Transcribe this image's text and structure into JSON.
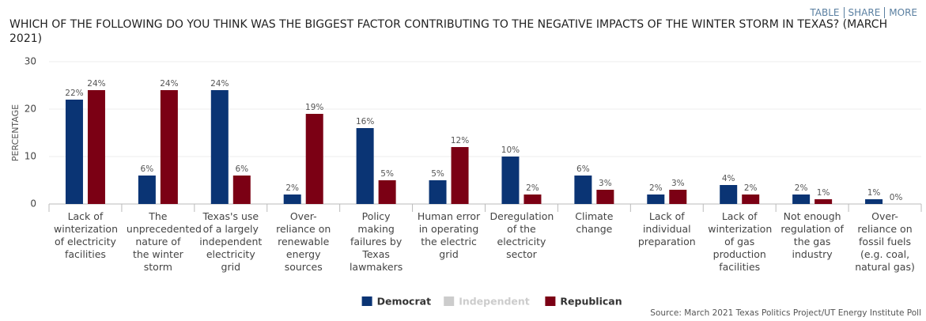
{
  "header": {
    "links": [
      "TABLE",
      "SHARE",
      "MORE"
    ]
  },
  "chart_data": {
    "type": "bar",
    "title": "WHICH OF THE FOLLOWING DO YOU THINK WAS THE BIGGEST FACTOR CONTRIBUTING TO THE NEGATIVE IMPACTS OF THE WINTER STORM IN TEXAS? (MARCH 2021)",
    "y_label": "PERCENTAGE",
    "categories": [
      "Lack of winterization of electricity facilities",
      "The unprecedented nature of the winter storm",
      "Texas's use of a largely independent electricity grid",
      "Over-reliance on renewable energy sources",
      "Policy making failures by Texas lawmakers",
      "Human error in operating the electric grid",
      "Deregulation of the electricity sector",
      "Climate change",
      "Lack of individual preparation",
      "Lack of winterization of gas production facilities",
      "Not enough regulation of the gas industry",
      "Over-reliance on fossil fuels (e.g. coal, natural gas)"
    ],
    "series": [
      {
        "name": "Democrat",
        "color": "#0a3474",
        "visible": true,
        "values": [
          22,
          6,
          24,
          2,
          16,
          5,
          10,
          6,
          2,
          4,
          2,
          1
        ],
        "value_labels": [
          "22%",
          "6%",
          "24%",
          "2%",
          "16%",
          "5%",
          "10%",
          "6%",
          "2%",
          "4%",
          "2%",
          "1%"
        ]
      },
      {
        "name": "Independent",
        "color": "#cccccc",
        "visible": false,
        "values": [
          null,
          null,
          null,
          null,
          null,
          null,
          null,
          null,
          null,
          null,
          null,
          null
        ]
      },
      {
        "name": "Republican",
        "color": "#7b0014",
        "visible": true,
        "values": [
          24,
          24,
          6,
          19,
          5,
          12,
          2,
          3,
          3,
          2,
          1,
          0
        ],
        "value_labels": [
          "24%",
          "24%",
          "6%",
          "19%",
          "5%",
          "12%",
          "2%",
          "3%",
          "3%",
          "2%",
          "1%",
          "0%"
        ]
      }
    ],
    "ylim": [
      0,
      30
    ],
    "yticks": [
      0,
      10,
      20,
      30
    ],
    "grid": true,
    "legend": "bottom",
    "source": "Source: March 2021 Texas Politics Project/UT Energy Institute Poll"
  }
}
